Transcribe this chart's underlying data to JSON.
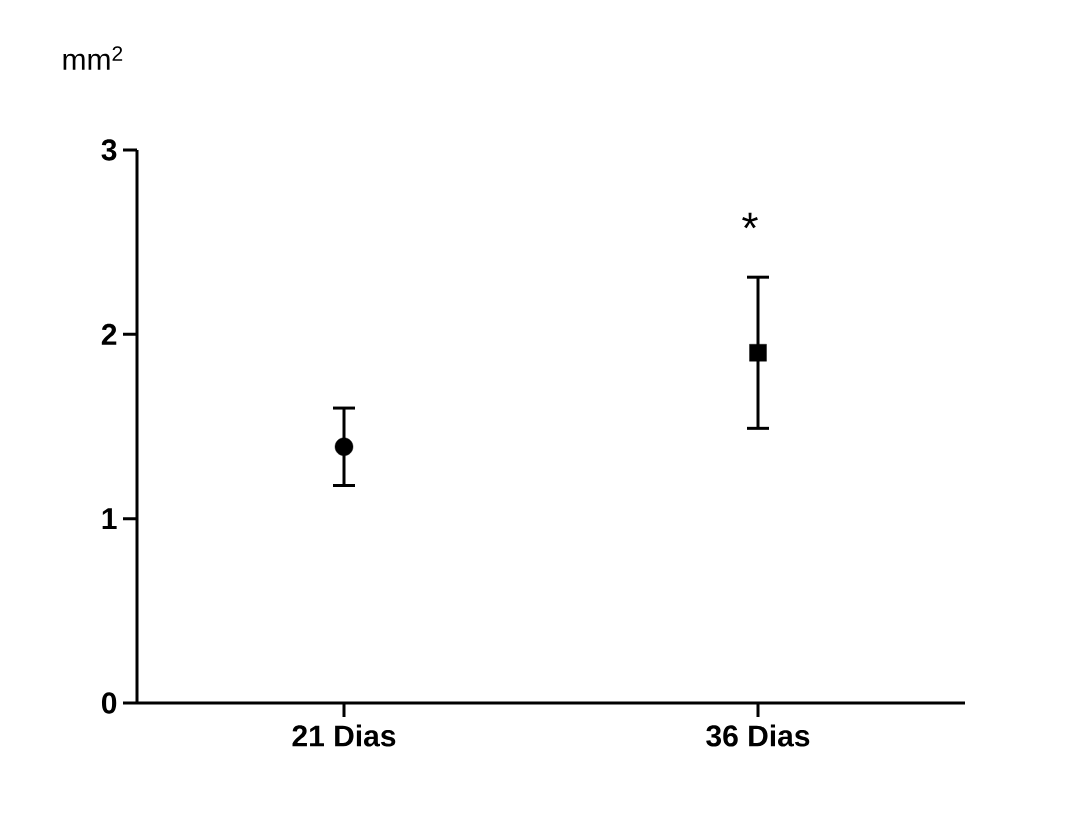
{
  "chart_data": {
    "type": "scatter",
    "ylabel": "mm$^{2}$",
    "categories": [
      "21 Dias",
      "36 Dias"
    ],
    "series": [
      {
        "color": "#000000",
        "marker": "circle",
        "values": [
          1.39,
          null
        ],
        "errors": [
          [
            1.18,
            1.6
          ],
          null
        ]
      },
      {
        "color": "#000000",
        "marker": "square",
        "values": [
          null,
          1.9
        ],
        "errors": [
          null,
          [
            1.49,
            2.31
          ]
        ]
      }
    ],
    "ylim": [
      0,
      3
    ],
    "yticks": [
      0,
      1,
      2,
      3
    ],
    "grid": false,
    "annotations": [
      "*"
    ]
  }
}
